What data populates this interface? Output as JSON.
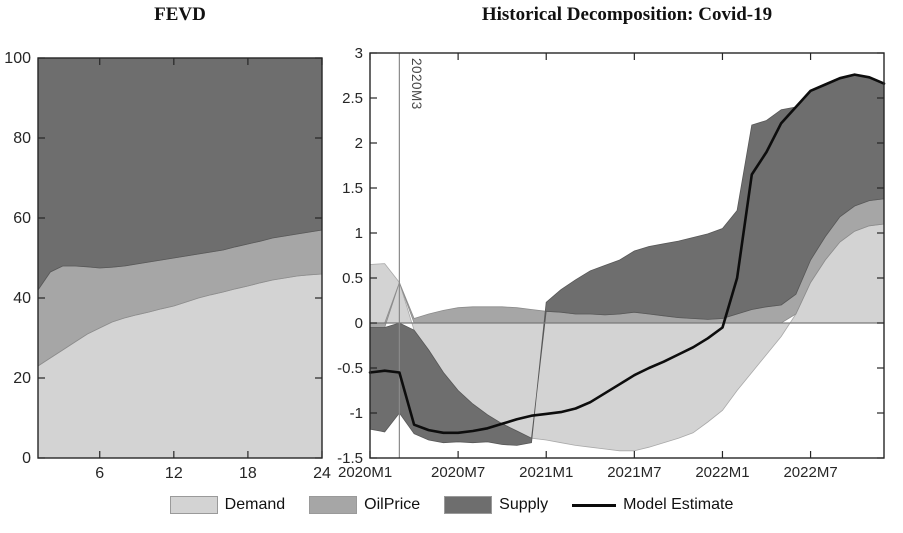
{
  "page": {
    "background": "#ffffff"
  },
  "charts": {
    "fevd": {
      "title": "FEVD"
    },
    "hd": {
      "title": "Historical Decomposition: Covid-19",
      "annotation": "2020M3"
    }
  },
  "legend": {
    "items": [
      {
        "key": "demand",
        "label": "Demand",
        "type": "patch"
      },
      {
        "key": "oilprice",
        "label": "OilPrice",
        "type": "patch"
      },
      {
        "key": "supply",
        "label": "Supply",
        "type": "patch"
      },
      {
        "key": "model",
        "label": "Model Estimate",
        "type": "line"
      }
    ]
  },
  "colors": {
    "demand": "#d3d3d3",
    "demand_edge": "#a9a9a9",
    "oilprice": "#a6a6a6",
    "oilprice_edge": "#8c8c8c",
    "supply": "#6e6e6e",
    "supply_edge": "#585858",
    "model": "#0d0d0d",
    "axis": "#262626",
    "zero_line": "#7a7a7a",
    "event_line": "#8a8a8a",
    "tick_label": "#262626"
  },
  "chart_data": [
    {
      "type": "area",
      "stacked": true,
      "title": "FEVD",
      "x": [
        1,
        2,
        3,
        4,
        5,
        6,
        7,
        8,
        9,
        10,
        11,
        12,
        13,
        14,
        15,
        16,
        17,
        18,
        19,
        20,
        21,
        22,
        23,
        24
      ],
      "x_ticks": [
        6,
        12,
        18,
        24
      ],
      "ylim": [
        0,
        100
      ],
      "y_ticks": [
        {
          "v": 0,
          "label": "0"
        },
        {
          "v": 20,
          "label": "20"
        },
        {
          "v": 40,
          "label": "40"
        },
        {
          "v": 60,
          "label": "60"
        },
        {
          "v": 80,
          "label": "80"
        },
        {
          "v": 100,
          "label": "100"
        }
      ],
      "series": [
        {
          "name": "Demand",
          "key": "demand",
          "values": [
            23,
            25,
            27,
            29,
            31,
            32.5,
            34,
            35,
            35.8,
            36.5,
            37.3,
            38,
            39,
            40,
            40.8,
            41.5,
            42.3,
            43,
            43.8,
            44.5,
            45,
            45.5,
            45.8,
            46
          ]
        },
        {
          "name": "OilPrice",
          "key": "oilprice",
          "values": [
            19,
            21.5,
            21,
            19,
            16.8,
            15,
            13.7,
            13,
            12.7,
            12.5,
            12.2,
            12,
            11.5,
            11,
            10.7,
            10.5,
            10.5,
            10.5,
            10.4,
            10.5,
            10.5,
            10.5,
            10.7,
            11
          ]
        },
        {
          "name": "Supply",
          "key": "supply",
          "values": [
            58,
            53.5,
            52,
            52,
            52.2,
            52.5,
            52.3,
            52,
            51.5,
            51,
            50.5,
            50,
            49.5,
            49,
            48.5,
            48,
            47.2,
            46.5,
            45.8,
            45,
            44.5,
            44,
            43.5,
            43
          ]
        }
      ]
    },
    {
      "type": "area",
      "stacked": true,
      "signed_stacking": true,
      "title": "Historical Decomposition: Covid-19",
      "n_points": 36,
      "x_start": "2020M1",
      "x_end": "2022M12",
      "x_ticks": [
        {
          "index": 0,
          "label": "2020M1"
        },
        {
          "index": 6,
          "label": "2020M7"
        },
        {
          "index": 12,
          "label": "2021M1"
        },
        {
          "index": 18,
          "label": "2021M7"
        },
        {
          "index": 24,
          "label": "2022M1"
        },
        {
          "index": 30,
          "label": "2022M7"
        }
      ],
      "ylim": [
        -1.5,
        3
      ],
      "y_ticks": [
        {
          "v": 3,
          "label": "3"
        },
        {
          "v": 2.5,
          "label": "2.5"
        },
        {
          "v": 2,
          "label": "2"
        },
        {
          "v": 1.5,
          "label": "1.5"
        },
        {
          "v": 1,
          "label": "1"
        },
        {
          "v": 0.5,
          "label": "0.5"
        },
        {
          "v": 0,
          "label": "0"
        },
        {
          "v": -0.5,
          "label": "-0.5"
        },
        {
          "v": -1,
          "label": "-1"
        },
        {
          "v": -1.5,
          "label": "-1.5"
        }
      ],
      "annotation": {
        "label": "2020M3",
        "month_index": 2
      },
      "series": [
        {
          "name": "Demand",
          "key": "demand",
          "values": [
            0.65,
            0.66,
            0.45,
            -0.08,
            -0.3,
            -0.55,
            -0.75,
            -0.9,
            -1.02,
            -1.12,
            -1.2,
            -1.28,
            -1.3,
            -1.33,
            -1.36,
            -1.38,
            -1.4,
            -1.42,
            -1.42,
            -1.38,
            -1.33,
            -1.28,
            -1.22,
            -1.1,
            -0.97,
            -0.75,
            -0.55,
            -0.35,
            -0.15,
            0.1,
            0.45,
            0.7,
            0.9,
            1.02,
            1.08,
            1.1
          ]
        },
        {
          "name": "OilPrice",
          "key": "oilprice",
          "values": [
            -0.05,
            -0.05,
            0.0,
            0.05,
            0.1,
            0.14,
            0.17,
            0.18,
            0.18,
            0.18,
            0.17,
            0.15,
            0.13,
            0.12,
            0.1,
            0.1,
            0.09,
            0.1,
            0.12,
            0.1,
            0.08,
            0.06,
            0.05,
            0.04,
            0.05,
            0.1,
            0.15,
            0.18,
            0.2,
            0.22,
            0.25,
            0.26,
            0.28,
            0.28,
            0.28,
            0.28
          ]
        },
        {
          "name": "Supply",
          "key": "supply",
          "values": [
            -1.13,
            -1.16,
            -1.0,
            -1.15,
            -1.0,
            -0.78,
            -0.57,
            -0.43,
            -0.3,
            -0.23,
            -0.16,
            -0.05,
            0.1,
            0.25,
            0.38,
            0.48,
            0.55,
            0.6,
            0.68,
            0.75,
            0.8,
            0.85,
            0.9,
            0.95,
            1.0,
            1.15,
            2.05,
            2.07,
            2.17,
            2.08,
            1.88,
            1.69,
            1.54,
            1.46,
            1.37,
            1.28
          ]
        }
      ],
      "line": {
        "name": "Model Estimate",
        "key": "model",
        "values": [
          -0.55,
          -0.53,
          -0.55,
          -1.13,
          -1.19,
          -1.22,
          -1.22,
          -1.2,
          -1.17,
          -1.12,
          -1.07,
          -1.03,
          -1.01,
          -0.99,
          -0.95,
          -0.88,
          -0.78,
          -0.68,
          -0.58,
          -0.5,
          -0.43,
          -0.35,
          -0.27,
          -0.17,
          -0.05,
          0.5,
          1.65,
          1.9,
          2.22,
          2.4,
          2.58,
          2.65,
          2.72,
          2.76,
          2.73,
          2.66
        ]
      }
    }
  ]
}
